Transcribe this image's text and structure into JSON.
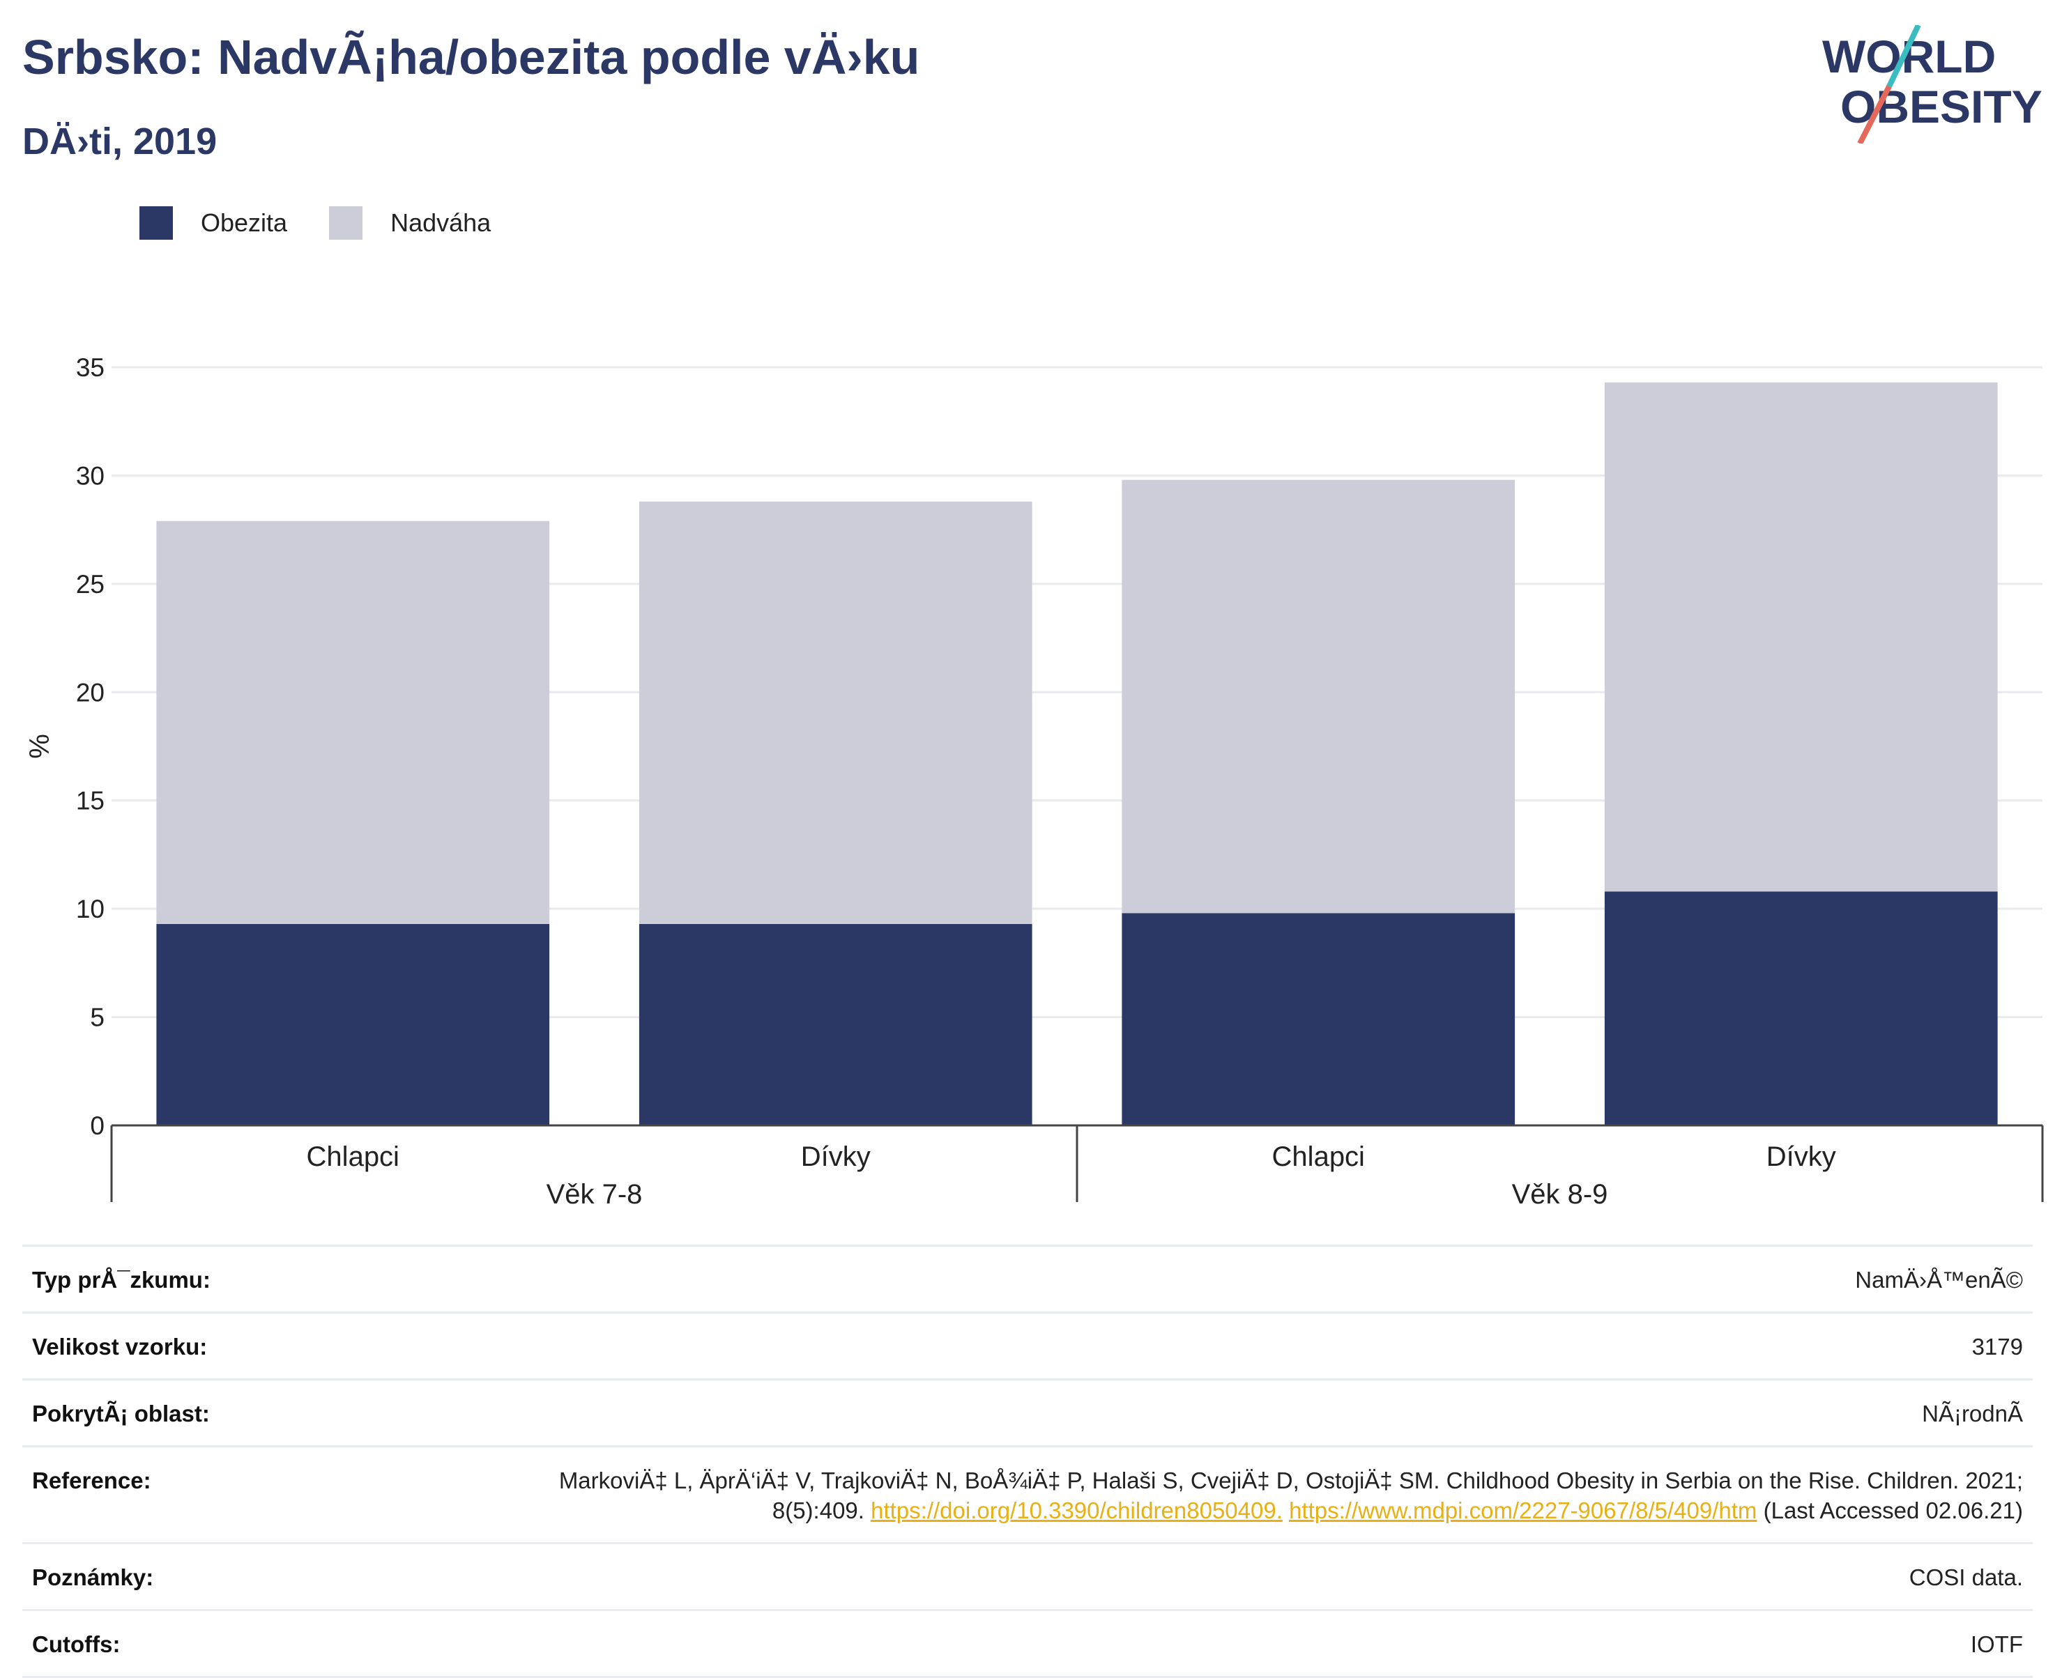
{
  "header": {
    "title": "Srbsko: NadvÃ¡ha/obezita podle vÄ›ku",
    "subtitle": "DÄ›ti, 2019"
  },
  "logo": {
    "line1": "WORLD",
    "line2": "OBESITY"
  },
  "colors": {
    "obesity": "#2b3764",
    "overweight": "#cccdd8",
    "title": "#2b3764",
    "link": "#e8b014",
    "logo_teal": "#3bbcc0",
    "logo_red": "#e5695a"
  },
  "chart_data": {
    "type": "bar",
    "stacked": true,
    "ylabel": "%",
    "ylim": [
      0,
      35
    ],
    "yticks": [
      0,
      5,
      10,
      15,
      20,
      25,
      30,
      35
    ],
    "grid": true,
    "legend_position": "top-left",
    "categories": [
      "Chlapci",
      "Dívky",
      "Chlapci",
      "Dívky"
    ],
    "groups": [
      {
        "label": "Věk 7-8",
        "categories": [
          "Chlapci",
          "Dívky"
        ]
      },
      {
        "label": "Věk 8-9",
        "categories": [
          "Chlapci",
          "Dívky"
        ]
      }
    ],
    "series": [
      {
        "name": "Obezita",
        "values": [
          9.3,
          9.3,
          9.8,
          10.8
        ]
      },
      {
        "name": "Nadváha",
        "values": [
          18.6,
          19.5,
          20.0,
          23.5
        ]
      }
    ]
  },
  "info": [
    {
      "label": "Typ prÅ¯zkumu:",
      "value": "NamÄ›Å™enÃ©"
    },
    {
      "label": "Velikost vzorku:",
      "value": "3179"
    },
    {
      "label": "PokrytÃ¡ oblast:",
      "value": "NÃ¡rodnÃ"
    },
    {
      "label": "Reference:",
      "value_pre": "MarkoviÄ‡ L, ÄprÄ‘iÄ‡ V, TrajkoviÄ‡ N, BoÅ¾iÄ‡ P, Halaši S, CvejiÄ‡ D, OstojiÄ‡ SM. Childhood Obesity in Serbia on the Rise. Children. 2021; 8(5):409. ",
      "link1": "https://doi.org/10.3390/children8050409.",
      "link2": "https://www.mdpi.com/2227-9067/8/5/409/htm",
      "value_post": " (Last Accessed 02.06.21)"
    },
    {
      "label": "Poznámky:",
      "value": "COSI data."
    },
    {
      "label": "Cutoffs:",
      "value": "IOTF"
    }
  ]
}
